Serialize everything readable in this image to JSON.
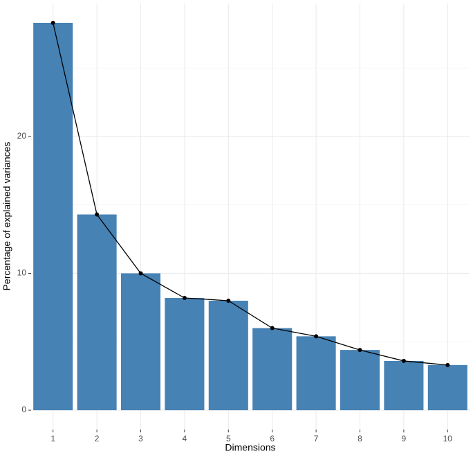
{
  "chart_data": {
    "type": "bar-line",
    "x_label": "Dimensions",
    "y_label": "Percentage of explained variances",
    "categories": [
      "1",
      "2",
      "3",
      "4",
      "5",
      "6",
      "7",
      "8",
      "9",
      "10"
    ],
    "values": [
      28.3,
      14.3,
      10.0,
      8.2,
      8.0,
      6.0,
      5.4,
      4.4,
      3.6,
      3.3
    ],
    "color": "#4682b4",
    "line_color": "#000000",
    "ylim": [
      -1.415,
      29.715
    ],
    "yticks": [
      0,
      10,
      20
    ],
    "minor_yticks": [
      5,
      15,
      25
    ],
    "grid": true
  }
}
